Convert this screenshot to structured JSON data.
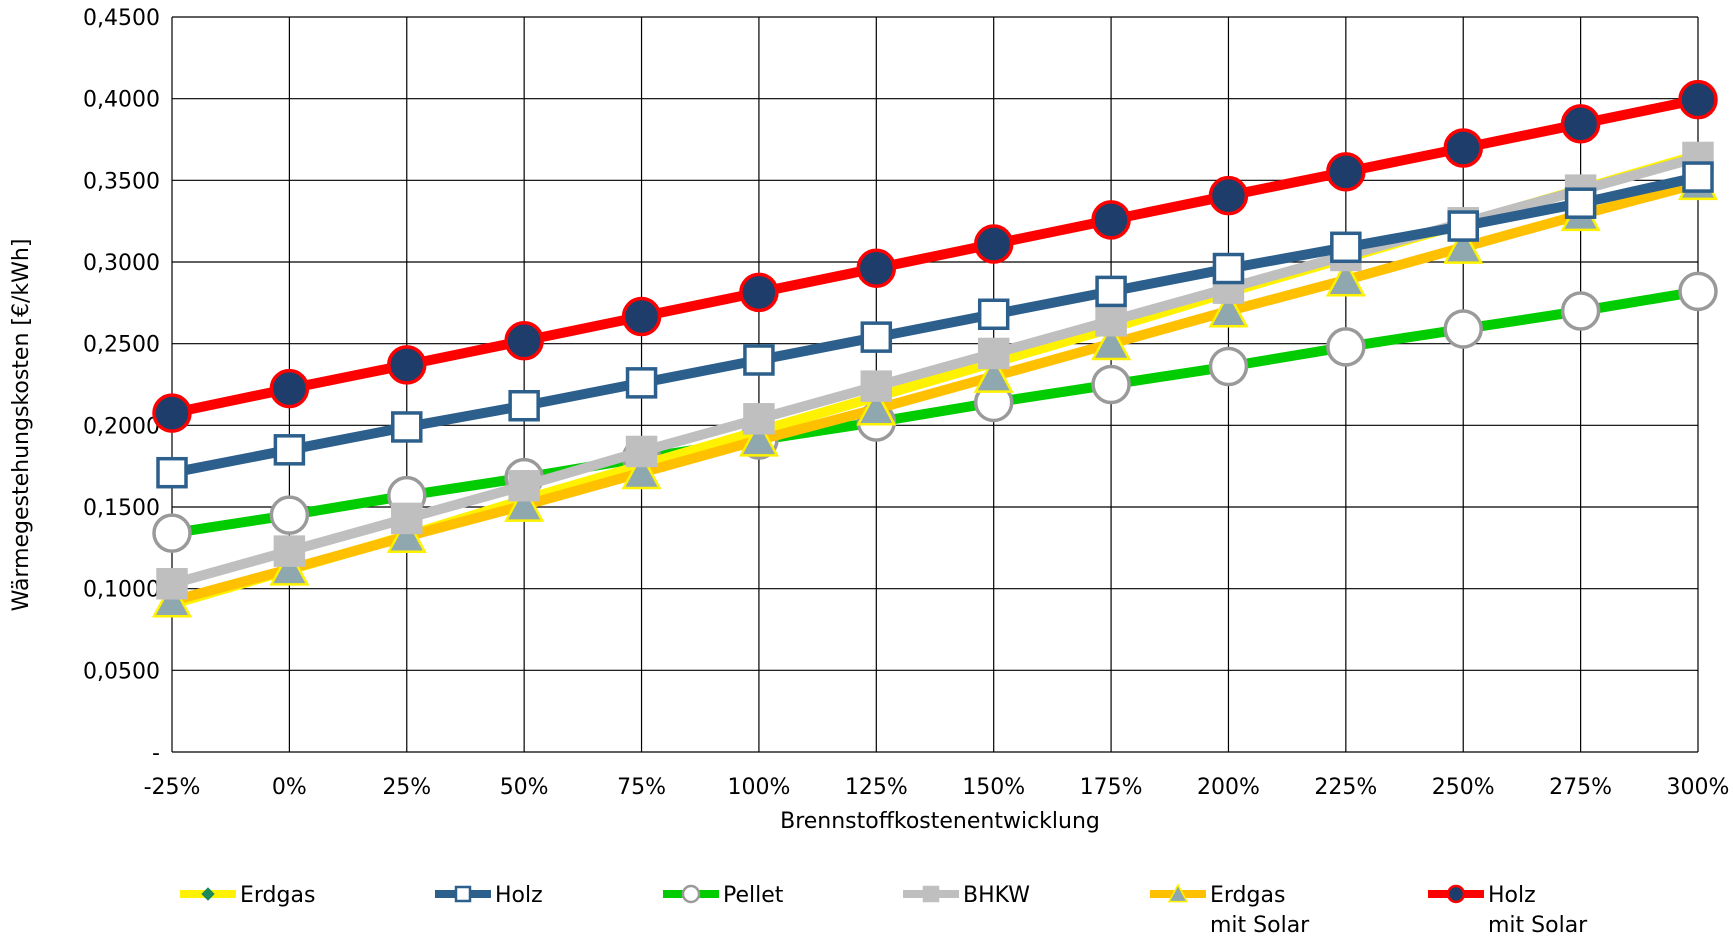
{
  "chart_data": {
    "type": "line",
    "categories": [
      "-25%",
      "0%",
      "25%",
      "50%",
      "75%",
      "100%",
      "125%",
      "150%",
      "175%",
      "200%",
      "225%",
      "250%",
      "275%",
      "300%"
    ],
    "xlabel": "Brennstoffkostenentwicklung",
    "ylabel": "Wärmegestehungskosten [€/kWh]",
    "ylim": [
      0,
      0.45
    ],
    "yticks": [
      {
        "value": 0,
        "label": "-"
      },
      {
        "value": 0.05,
        "label": "0,0500"
      },
      {
        "value": 0.1,
        "label": "0,1000"
      },
      {
        "value": 0.15,
        "label": "0,1500"
      },
      {
        "value": 0.2,
        "label": "0,2000"
      },
      {
        "value": 0.25,
        "label": "0,2500"
      },
      {
        "value": 0.3,
        "label": "0,3000"
      },
      {
        "value": 0.35,
        "label": "0,3500"
      },
      {
        "value": 0.4,
        "label": "0,4000"
      },
      {
        "value": 0.45,
        "label": "0,4500"
      }
    ],
    "grid": true,
    "legend_position": "bottom",
    "series": [
      {
        "name": "Erdgas",
        "color": "#FFF200",
        "marker": "diamond",
        "marker_fill": "#1B8A5A",
        "marker_stroke": "#1B8A5A",
        "values": [
          0.0905,
          0.1115,
          0.1325,
          0.1545,
          0.1755,
          0.1965,
          0.2175,
          0.2385,
          0.2595,
          0.2815,
          0.3025,
          0.3235,
          0.3445,
          0.3655
        ]
      },
      {
        "name": "Holz",
        "color": "#2C5F8C",
        "marker": "square",
        "marker_fill": "#FFFFFF",
        "marker_stroke": "#2C5F8C",
        "values": [
          0.171,
          0.185,
          0.199,
          0.212,
          0.226,
          0.24,
          0.254,
          0.268,
          0.282,
          0.296,
          0.309,
          0.322,
          0.336,
          0.352
        ]
      },
      {
        "name": "Pellet",
        "color": "#00CC00",
        "marker": "circle",
        "marker_fill": "#FFFFFF",
        "marker_stroke": "#9A9A9A",
        "values": [
          0.134,
          0.145,
          0.157,
          0.168,
          0.18,
          0.191,
          0.202,
          0.214,
          0.225,
          0.236,
          0.248,
          0.259,
          0.27,
          0.282
        ]
      },
      {
        "name": "BHKW",
        "color": "#BFBFBF",
        "marker": "square",
        "marker_fill": "#BFBFBF",
        "marker_stroke": "#BFBFBF",
        "values": [
          0.103,
          0.123,
          0.143,
          0.163,
          0.184,
          0.204,
          0.224,
          0.244,
          0.264,
          0.284,
          0.304,
          0.324,
          0.344,
          0.364
        ]
      },
      {
        "name": "Erdgas",
        "name_line2": "mit Solar",
        "color": "#FFC000",
        "marker": "triangle",
        "marker_fill": "#8FA8B0",
        "marker_stroke": "#FFF200",
        "values": [
          0.0925,
          0.112,
          0.132,
          0.151,
          0.171,
          0.191,
          0.21,
          0.23,
          0.25,
          0.27,
          0.289,
          0.309,
          0.329,
          0.348
        ]
      },
      {
        "name": "Holz",
        "name_line2": "mit Solar",
        "color": "#FF0000",
        "marker": "circle",
        "marker_fill": "#1F3D6B",
        "marker_stroke": "#FF0000",
        "values": [
          0.2075,
          0.2225,
          0.237,
          0.2518,
          0.2666,
          0.2814,
          0.2962,
          0.311,
          0.3258,
          0.3406,
          0.3552,
          0.3698,
          0.3846,
          0.3994
        ]
      }
    ]
  }
}
